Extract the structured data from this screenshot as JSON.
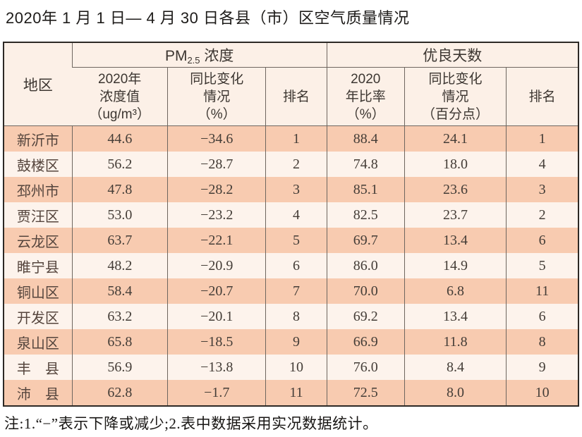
{
  "page": {
    "title": "2020年 1 月 1 日— 4 月 30 日各县（市）区空气质量情况",
    "footnote": "注:1.“−”表示下降或减少;2.表中数据采用实况数据统计。"
  },
  "colors": {
    "row_peach": "#f8cbb0",
    "row_light": "#fdf3ec",
    "header_bg": "#fcf0e7",
    "outer_border": "#2d2925",
    "grid_line": "#6e665f",
    "text": "#463f39"
  },
  "table": {
    "corner_header": "地区",
    "group_pm": {
      "prefix": "PM",
      "subscript": "2.5",
      "suffix": " 浓度"
    },
    "group_good": "优良天数",
    "columns": {
      "pm_value": {
        "line1": "2020年",
        "line2": "浓度值",
        "line3": "（ug/m³）"
      },
      "pm_change": {
        "line1": "同比变化",
        "line2": "情况",
        "line3": "（%）"
      },
      "pm_rank": {
        "line1": "排名"
      },
      "good_rate": {
        "line1": "2020",
        "line2": "年比率",
        "line3": "（%）"
      },
      "good_change": {
        "line1": "同比变化",
        "line2": "情况",
        "line3": "（百分点）"
      },
      "good_rank": {
        "line1": "排名"
      }
    },
    "rows": [
      {
        "region": "新沂市",
        "pm_value": "44.6",
        "pm_change": "−34.6",
        "pm_rank": "1",
        "good_rate": "88.4",
        "good_change": "24.1",
        "good_rank": "1"
      },
      {
        "region": "鼓楼区",
        "pm_value": "56.2",
        "pm_change": "−28.7",
        "pm_rank": "2",
        "good_rate": "74.8",
        "good_change": "18.0",
        "good_rank": "4"
      },
      {
        "region": "邳州市",
        "pm_value": "47.8",
        "pm_change": "−28.2",
        "pm_rank": "3",
        "good_rate": "85.1",
        "good_change": "23.6",
        "good_rank": "3"
      },
      {
        "region": "贾汪区",
        "pm_value": "53.0",
        "pm_change": "−23.2",
        "pm_rank": "4",
        "good_rate": "82.5",
        "good_change": "23.7",
        "good_rank": "2"
      },
      {
        "region": "云龙区",
        "pm_value": "63.7",
        "pm_change": "−22.1",
        "pm_rank": "5",
        "good_rate": "69.7",
        "good_change": "13.4",
        "good_rank": "6"
      },
      {
        "region": "睢宁县",
        "pm_value": "48.2",
        "pm_change": "−20.9",
        "pm_rank": "6",
        "good_rate": "86.0",
        "good_change": "14.9",
        "good_rank": "5"
      },
      {
        "region": "铜山区",
        "pm_value": "58.4",
        "pm_change": "−20.7",
        "pm_rank": "7",
        "good_rate": "70.0",
        "good_change": "6.8",
        "good_rank": "11"
      },
      {
        "region": "开发区",
        "pm_value": "63.2",
        "pm_change": "−20.1",
        "pm_rank": "8",
        "good_rate": "69.2",
        "good_change": "13.4",
        "good_rank": "6"
      },
      {
        "region": "泉山区",
        "pm_value": "65.8",
        "pm_change": "−18.5",
        "pm_rank": "9",
        "good_rate": "66.9",
        "good_change": "11.8",
        "good_rank": "8"
      },
      {
        "region": "丰　县",
        "pm_value": "56.9",
        "pm_change": "−13.8",
        "pm_rank": "10",
        "good_rate": "76.0",
        "good_change": "8.4",
        "good_rank": "9"
      },
      {
        "region": "沛　县",
        "pm_value": "62.8",
        "pm_change": "−1.7",
        "pm_rank": "11",
        "good_rate": "72.5",
        "good_change": "8.0",
        "good_rank": "10"
      }
    ]
  }
}
